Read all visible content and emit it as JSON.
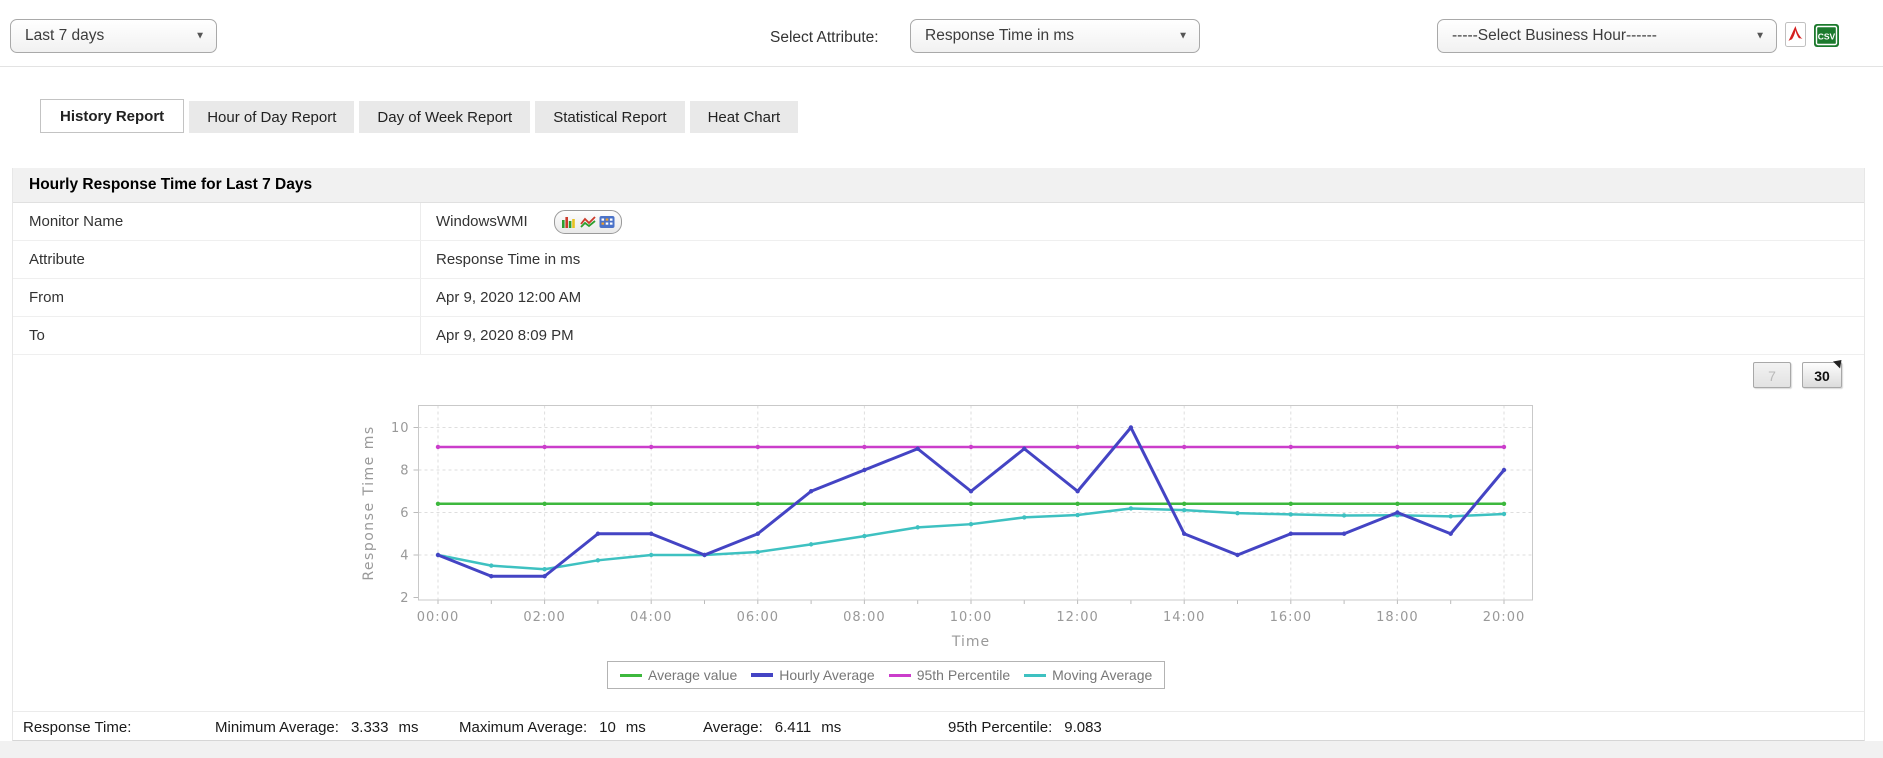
{
  "toolbar": {
    "time_range_value": "Last 7 days",
    "attribute_label": "Select Attribute:",
    "attribute_value": "Response Time in ms",
    "business_hour_value": "-----Select Business Hour------",
    "csv_icon_text": "CSV"
  },
  "tabs": [
    {
      "label": "History Report",
      "active": true
    },
    {
      "label": "Hour of Day Report",
      "active": false
    },
    {
      "label": "Day of Week Report",
      "active": false
    },
    {
      "label": "Statistical Report",
      "active": false
    },
    {
      "label": "Heat Chart",
      "active": false
    }
  ],
  "report": {
    "title": "Hourly Response Time for Last 7 Days",
    "rows": [
      {
        "label": "Monitor Name",
        "value": "WindowsWMI"
      },
      {
        "label": "Attribute",
        "value": "Response Time in ms"
      },
      {
        "label": "From",
        "value": "Apr 9, 2020 12:00 AM"
      },
      {
        "label": "To",
        "value": "Apr 9, 2020 8:09 PM"
      }
    ]
  },
  "chart_controls": {
    "range_7": "7",
    "range_30": "30"
  },
  "chart_data": {
    "type": "line",
    "title": "",
    "xlabel": "Time",
    "ylabel": "Response Time ms",
    "x": [
      0,
      1,
      2,
      3,
      4,
      5,
      6,
      7,
      8,
      9,
      10,
      11,
      12,
      13,
      14,
      15,
      16,
      17,
      18,
      19,
      20
    ],
    "x_tick_labels": [
      "00:00",
      "02:00",
      "04:00",
      "06:00",
      "08:00",
      "10:00",
      "12:00",
      "14:00",
      "16:00",
      "18:00",
      "20:00"
    ],
    "y_ticks": [
      2,
      4,
      6,
      8,
      10
    ],
    "ylim": [
      2,
      11
    ],
    "grid": true,
    "legend_position": "bottom",
    "series": [
      {
        "name": "Average value",
        "color": "#3db83d",
        "style": "constant",
        "value": 6.411
      },
      {
        "name": "Hourly Average",
        "color": "#4444c4",
        "values": [
          4,
          3,
          3,
          5,
          5,
          4,
          5,
          7,
          8,
          9,
          7,
          9,
          7,
          10,
          5,
          4,
          5,
          5,
          6,
          5,
          8
        ]
      },
      {
        "name": "95th Percentile",
        "color": "#cb3dcb",
        "style": "constant",
        "value": 9.083
      },
      {
        "name": "Moving Average",
        "color": "#3ec1c1",
        "values": [
          4,
          3.5,
          3.33,
          3.75,
          4,
          4,
          4.14,
          4.5,
          4.89,
          5.3,
          5.45,
          5.77,
          5.88,
          6.19,
          6.11,
          5.97,
          5.91,
          5.86,
          5.87,
          5.82,
          5.93
        ]
      }
    ]
  },
  "footer": {
    "label": "Response Time:",
    "stats": [
      {
        "label": "Minimum Average:",
        "value": "3.333",
        "unit": "ms"
      },
      {
        "label": "Maximum Average:",
        "value": "10",
        "unit": "ms"
      },
      {
        "label": "Average:",
        "value": "6.411",
        "unit": "ms"
      },
      {
        "label": "95th Percentile:",
        "value": "9.083",
        "unit": ""
      }
    ]
  }
}
